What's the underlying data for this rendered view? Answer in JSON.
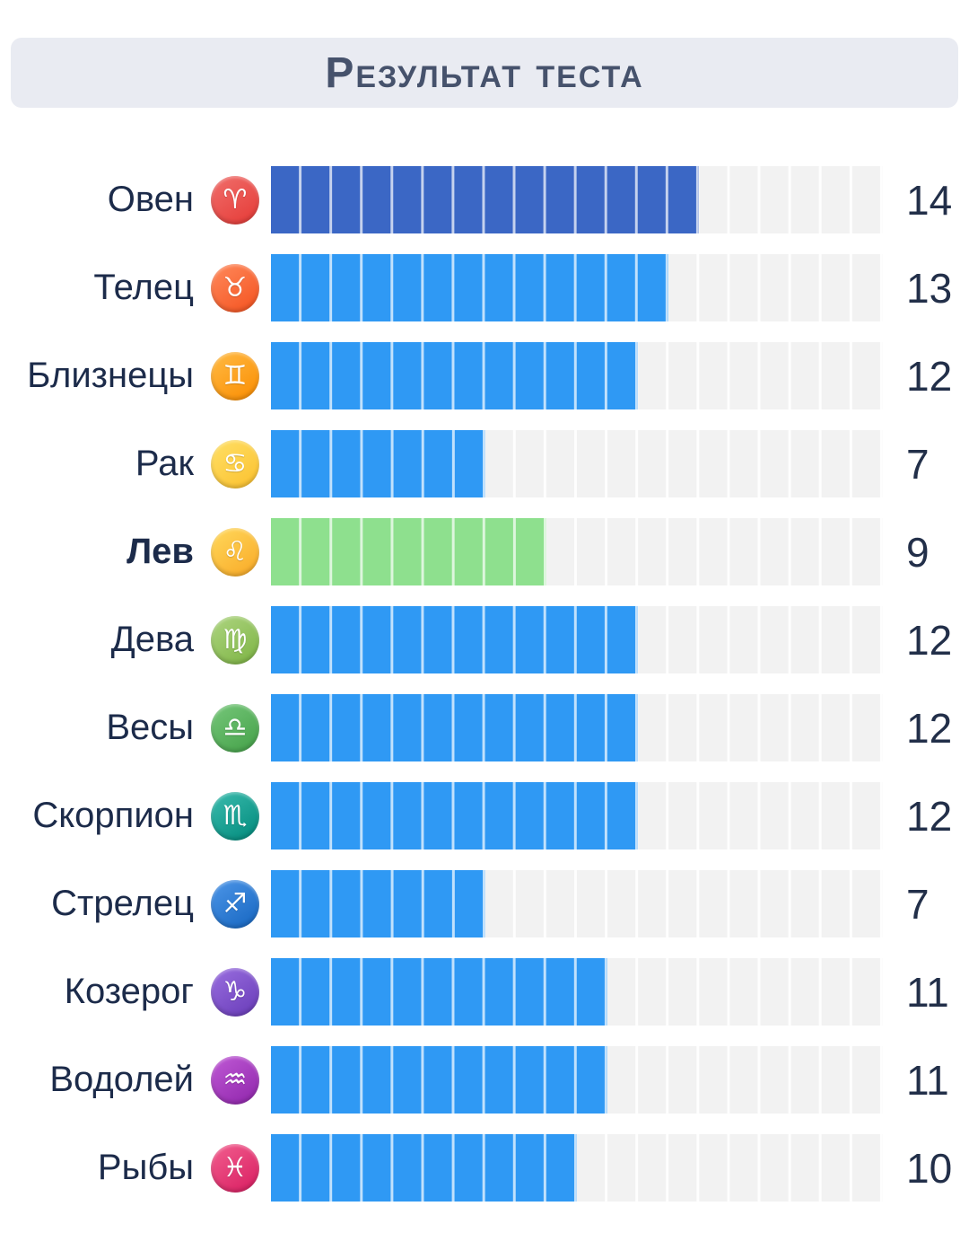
{
  "header": {
    "title": "Результат теста"
  },
  "chart_data": {
    "type": "bar",
    "orientation": "horizontal",
    "title": "Результат теста",
    "max": 20,
    "track_color": "#f2f2f2",
    "default_bar_color": "#2f99f4",
    "highlight_bar_color": "#8ee08e",
    "first_bar_color": "#3b67c5",
    "rows": [
      {
        "sign": "aries",
        "label": "Овен",
        "glyph": "♈",
        "value": 14,
        "bar_color": "#3b67c5",
        "icon_color": "#e53935",
        "icon_color_light": "#f06f6c",
        "bold": false
      },
      {
        "sign": "taurus",
        "label": "Телец",
        "glyph": "♉",
        "value": 13,
        "bar_color": "#2f99f4",
        "icon_color": "#f4511e",
        "icon_color_light": "#ff8a5c",
        "bold": false
      },
      {
        "sign": "gemini",
        "label": "Близнецы",
        "glyph": "♊",
        "value": 12,
        "bar_color": "#2f99f4",
        "icon_color": "#fb8c00",
        "icon_color_light": "#ffbb44",
        "bold": false
      },
      {
        "sign": "cancer",
        "label": "Рак",
        "glyph": "♋",
        "value": 7,
        "bar_color": "#2f99f4",
        "icon_color": "#fbc02d",
        "icon_color_light": "#ffe066",
        "bold": false
      },
      {
        "sign": "leo",
        "label": "Лев",
        "glyph": "♌",
        "value": 9,
        "bar_color": "#8ee08e",
        "icon_color": "#f9a825",
        "icon_color_light": "#ffd95c",
        "bold": true
      },
      {
        "sign": "virgo",
        "label": "Дева",
        "glyph": "♍",
        "value": 12,
        "bar_color": "#2f99f4",
        "icon_color": "#7cb342",
        "icon_color_light": "#aed581",
        "bold": false
      },
      {
        "sign": "libra",
        "label": "Весы",
        "glyph": "♎",
        "value": 12,
        "bar_color": "#2f99f4",
        "icon_color": "#43a047",
        "icon_color_light": "#76c77a",
        "bold": false
      },
      {
        "sign": "scorpio",
        "label": "Скорпион",
        "glyph": "♏",
        "value": 12,
        "bar_color": "#2f99f4",
        "icon_color": "#00897b",
        "icon_color_light": "#3bbcae",
        "bold": false
      },
      {
        "sign": "sagittarius",
        "label": "Стрелец",
        "glyph": "♐",
        "value": 7,
        "bar_color": "#2f99f4",
        "icon_color": "#1565c0",
        "icon_color_light": "#4d96e8",
        "bold": false
      },
      {
        "sign": "capricorn",
        "label": "Козерог",
        "glyph": "♑",
        "value": 11,
        "bar_color": "#2f99f4",
        "icon_color": "#673ab7",
        "icon_color_light": "#9a6fe0",
        "bold": false
      },
      {
        "sign": "aquarius",
        "label": "Водолей",
        "glyph": "♒",
        "value": 11,
        "bar_color": "#2f99f4",
        "icon_color": "#8e24aa",
        "icon_color_light": "#c05ad6",
        "bold": false
      },
      {
        "sign": "pisces",
        "label": "Рыбы",
        "glyph": "♓",
        "value": 10,
        "bar_color": "#2f99f4",
        "icon_color": "#d81b60",
        "icon_color_light": "#f2608f",
        "bold": false
      }
    ]
  }
}
